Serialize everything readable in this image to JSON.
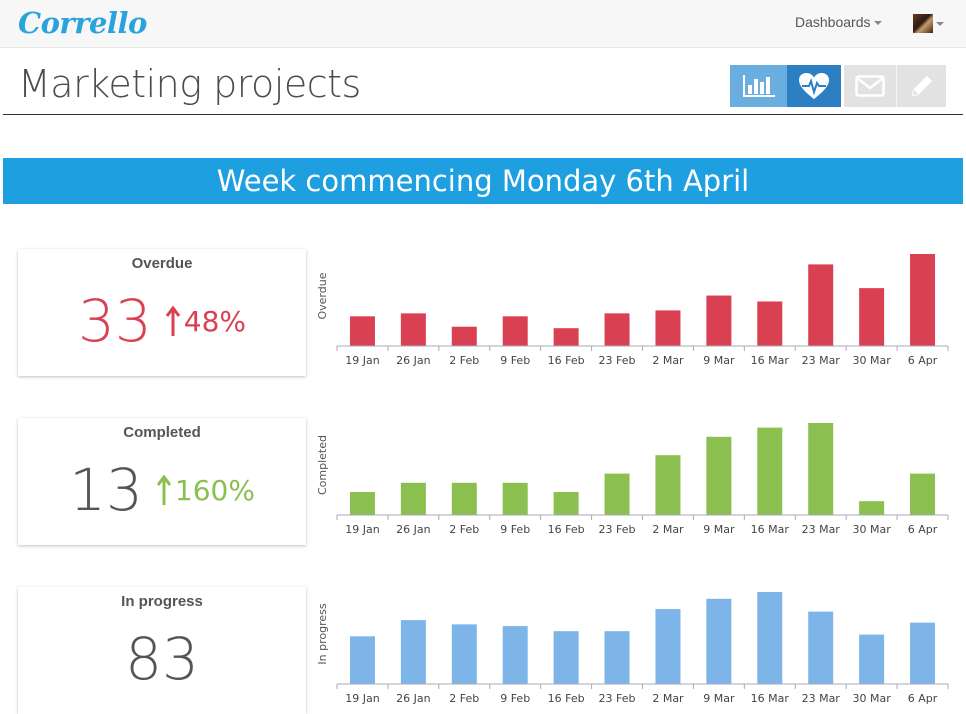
{
  "app": {
    "logo": "Corrello"
  },
  "nav": {
    "dashboards_label": "Dashboards"
  },
  "page": {
    "title": "Marketing projects"
  },
  "toolbar": {
    "chart_icon": "bar-chart-icon",
    "health_icon": "heartbeat-icon",
    "mail_icon": "envelope-icon",
    "edit_icon": "pencil-icon"
  },
  "banner": {
    "text": "Week commencing Monday 6th April"
  },
  "colors": {
    "overdue": "#d94052",
    "completed": "#8bbf4f",
    "in_progress": "#7db5e8",
    "banner": "#1e9fe0"
  },
  "metrics": [
    {
      "title": "Overdue",
      "value": "33",
      "change": "48%"
    },
    {
      "title": "Completed",
      "value": "13",
      "change": "160%"
    },
    {
      "title": "In progress",
      "value": "83",
      "change": ""
    }
  ],
  "chart_data": [
    {
      "type": "bar",
      "ylabel": "Overdue",
      "categories": [
        "19 Jan",
        "26 Jan",
        "2 Feb",
        "9 Feb",
        "16 Feb",
        "23 Feb",
        "2 Mar",
        "9 Mar",
        "16 Mar",
        "23 Mar",
        "30 Mar",
        "6 Apr"
      ],
      "values": [
        20,
        22,
        13,
        20,
        12,
        22,
        24,
        34,
        30,
        55,
        39,
        62
      ],
      "ylim": [
        0,
        62
      ]
    },
    {
      "type": "bar",
      "ylabel": "Completed",
      "categories": [
        "19 Jan",
        "26 Jan",
        "2 Feb",
        "9 Feb",
        "16 Feb",
        "23 Feb",
        "2 Mar",
        "9 Mar",
        "16 Mar",
        "23 Mar",
        "30 Mar",
        "6 Apr"
      ],
      "values": [
        5,
        7,
        7,
        7,
        5,
        9,
        13,
        17,
        19,
        20,
        3,
        9
      ],
      "ylim": [
        0,
        20
      ]
    },
    {
      "type": "bar",
      "ylabel": "In progress",
      "categories": [
        "19 Jan",
        "26 Jan",
        "2 Feb",
        "9 Feb",
        "16 Feb",
        "23 Feb",
        "2 Mar",
        "9 Mar",
        "16 Mar",
        "23 Mar",
        "30 Mar",
        "6 Apr"
      ],
      "values": [
        56,
        75,
        70,
        68,
        62,
        62,
        88,
        100,
        108,
        85,
        58,
        72
      ],
      "ylim": [
        0,
        108
      ]
    }
  ]
}
